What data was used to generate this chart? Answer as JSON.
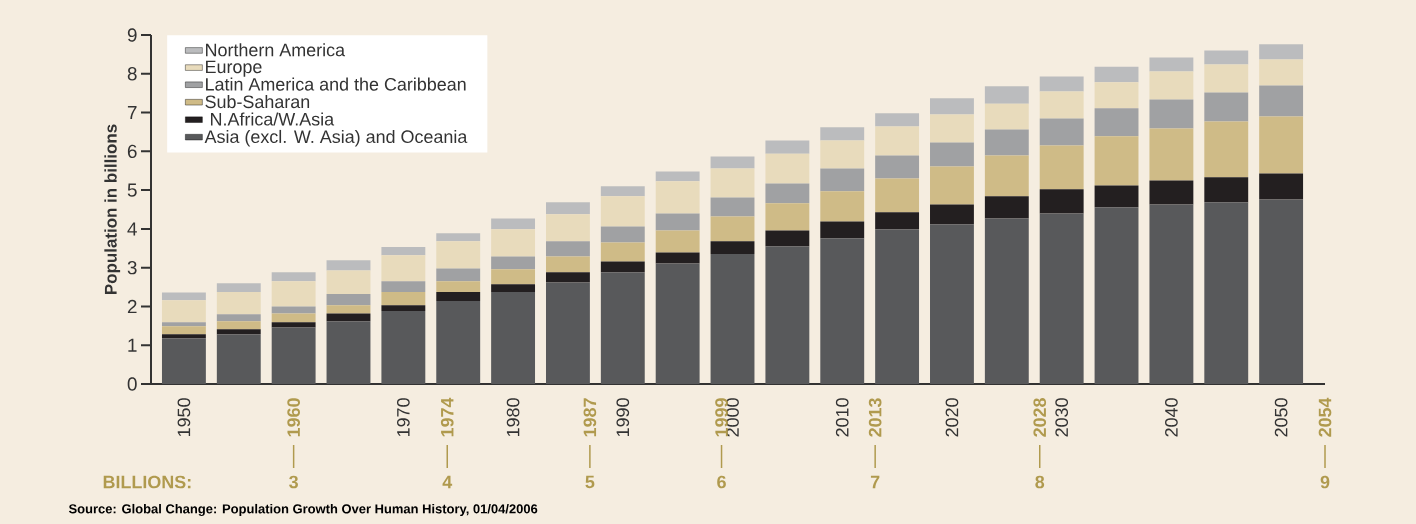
{
  "chart_data": {
    "type": "bar",
    "stacked": true,
    "ylabel": "Population in billions",
    "x": [
      1950,
      1955,
      1960,
      1965,
      1970,
      1975,
      1980,
      1985,
      1990,
      1995,
      2000,
      2005,
      2010,
      2015,
      2020,
      2025,
      2030,
      2035,
      2040,
      2045,
      2050
    ],
    "series": [
      {
        "name": "Asia (excl. W. Asia) and Oceania",
        "color": "#58595b",
        "values": [
          1.18,
          1.28,
          1.46,
          1.62,
          1.88,
          2.14,
          2.37,
          2.62,
          2.88,
          3.11,
          3.35,
          3.55,
          3.76,
          3.99,
          4.12,
          4.27,
          4.4,
          4.56,
          4.63,
          4.69,
          4.76
        ]
      },
      {
        "name": " N.Africa/W.Asia",
        "color": "#231f20",
        "values": [
          0.1,
          0.13,
          0.13,
          0.2,
          0.15,
          0.23,
          0.2,
          0.26,
          0.28,
          0.28,
          0.33,
          0.41,
          0.43,
          0.44,
          0.51,
          0.57,
          0.62,
          0.56,
          0.62,
          0.64,
          0.67
        ]
      },
      {
        "name": "Sub-Saharan",
        "color": "#cfbb87",
        "values": [
          0.21,
          0.21,
          0.23,
          0.21,
          0.34,
          0.28,
          0.39,
          0.41,
          0.49,
          0.57,
          0.64,
          0.7,
          0.78,
          0.87,
          0.98,
          1.05,
          1.13,
          1.27,
          1.34,
          1.44,
          1.47
        ]
      },
      {
        "name": "Latin America and the Caribbean",
        "color": "#a0a1a3",
        "values": [
          0.1,
          0.18,
          0.18,
          0.29,
          0.28,
          0.33,
          0.33,
          0.39,
          0.41,
          0.44,
          0.49,
          0.51,
          0.59,
          0.59,
          0.62,
          0.67,
          0.7,
          0.72,
          0.75,
          0.75,
          0.8
        ]
      },
      {
        "name": "Europe",
        "color": "#e8dbbc",
        "values": [
          0.57,
          0.57,
          0.65,
          0.61,
          0.67,
          0.7,
          0.7,
          0.7,
          0.78,
          0.83,
          0.75,
          0.77,
          0.72,
          0.75,
          0.72,
          0.67,
          0.69,
          0.67,
          0.72,
          0.72,
          0.67
        ]
      },
      {
        "name": "Northern America",
        "color": "#bbbcbe",
        "values": [
          0.2,
          0.23,
          0.23,
          0.26,
          0.21,
          0.21,
          0.28,
          0.31,
          0.26,
          0.25,
          0.31,
          0.34,
          0.34,
          0.34,
          0.42,
          0.45,
          0.39,
          0.4,
          0.36,
          0.36,
          0.39
        ]
      }
    ],
    "xlim": [
      1947,
      2054
    ],
    "ylim": [
      0,
      9
    ],
    "yticks": [
      0,
      1,
      2,
      3,
      4,
      5,
      6,
      7,
      8,
      9
    ],
    "xticks": [
      1950,
      {
        "value": 1960,
        "label": "1960"
      },
      1970,
      {
        "value": 1974,
        "label": "1974"
      },
      1980,
      {
        "value": 1987,
        "label": "1987"
      },
      1990,
      {
        "value": 1999,
        "label": "1999"
      },
      2000,
      2010,
      {
        "value": 2013,
        "label": "2013"
      },
      2020,
      {
        "value": 2028,
        "label": "2028"
      },
      2030,
      2040,
      2050,
      {
        "value": 2054,
        "label": "2054"
      }
    ],
    "legend": "top left",
    "annotations": [
      "BILLIONS:",
      "3",
      "4",
      "5",
      "6",
      "7",
      "8",
      "9",
      "Source: Global Change: Population Growth Over Human History, 01/04/2006"
    ]
  }
}
